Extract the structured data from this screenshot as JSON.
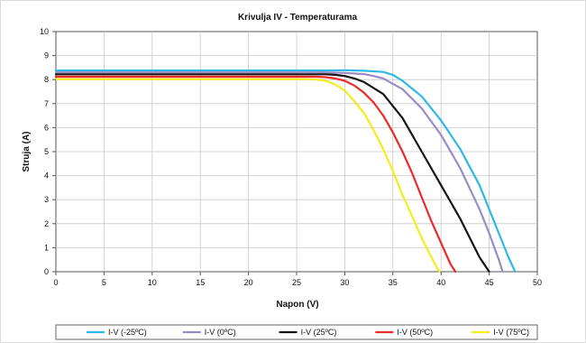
{
  "chart_data": {
    "type": "line",
    "title": "Krivulja IV - Temperaturama",
    "xlabel": "Napon (V)",
    "ylabel": "Struja (A)",
    "xlim": [
      0,
      50
    ],
    "ylim": [
      0,
      10
    ],
    "xticks": [
      0,
      5,
      10,
      15,
      20,
      25,
      30,
      35,
      40,
      45,
      50
    ],
    "yticks": [
      0,
      1,
      2,
      3,
      4,
      5,
      6,
      7,
      8,
      9,
      10
    ],
    "grid": true,
    "legend_position": "bottom",
    "series": [
      {
        "name": "I-V (-25ºC)",
        "color": "#2FB8E3",
        "x": [
          0,
          10,
          20,
          28,
          30,
          32,
          34,
          35,
          36,
          38,
          40,
          42,
          44,
          45,
          46,
          47,
          47.7
        ],
        "y": [
          8.38,
          8.38,
          8.38,
          8.38,
          8.39,
          8.37,
          8.32,
          8.2,
          7.95,
          7.3,
          6.3,
          5.1,
          3.6,
          2.6,
          1.6,
          0.6,
          0
        ]
      },
      {
        "name": "I-V (0ºC)",
        "color": "#9B8BC4",
        "x": [
          0,
          10,
          20,
          28,
          30,
          32,
          33,
          34,
          36,
          38,
          40,
          42,
          44,
          45,
          46,
          46.4
        ],
        "y": [
          8.3,
          8.3,
          8.3,
          8.3,
          8.28,
          8.23,
          8.15,
          8.05,
          7.6,
          6.8,
          5.7,
          4.3,
          2.6,
          1.6,
          0.5,
          0
        ]
      },
      {
        "name": "I-V (25ºC)",
        "color": "#151515",
        "x": [
          0,
          10,
          20,
          28,
          29,
          30,
          31,
          32,
          34,
          36,
          38,
          40,
          42,
          43,
          44,
          45
        ],
        "y": [
          8.22,
          8.22,
          8.22,
          8.22,
          8.2,
          8.15,
          8.05,
          7.9,
          7.4,
          6.4,
          5.0,
          3.6,
          2.2,
          1.4,
          0.6,
          0
        ]
      },
      {
        "name": "I-V (50ºC)",
        "color": "#EC2A2A",
        "x": [
          0,
          10,
          20,
          27,
          28,
          29,
          30,
          31,
          32,
          33,
          34,
          35,
          36,
          37,
          38,
          39,
          40,
          41,
          41.5
        ],
        "y": [
          8.12,
          8.12,
          8.12,
          8.12,
          8.1,
          8.05,
          7.95,
          7.75,
          7.45,
          7.05,
          6.5,
          5.8,
          5.0,
          4.1,
          3.1,
          2.1,
          1.2,
          0.3,
          0
        ]
      },
      {
        "name": "I-V (75ºC)",
        "color": "#F5EC1C",
        "x": [
          0,
          10,
          20,
          26,
          27,
          28,
          29,
          30,
          31,
          32,
          33,
          34,
          35,
          36,
          37,
          38,
          39,
          39.8
        ],
        "y": [
          8.02,
          8.02,
          8.02,
          8.02,
          8.0,
          7.95,
          7.8,
          7.55,
          7.1,
          6.6,
          5.9,
          5.1,
          4.2,
          3.2,
          2.3,
          1.4,
          0.6,
          0
        ]
      }
    ]
  }
}
